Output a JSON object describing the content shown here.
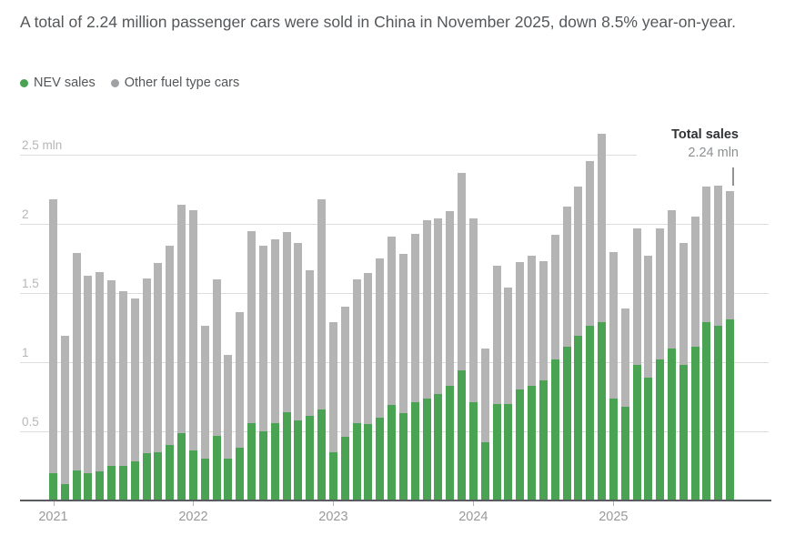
{
  "header": {
    "title": "A total of 2.24 million passenger cars were sold in China in November 2025, down 8.5% year-on-year."
  },
  "legend": {
    "items": [
      {
        "label": "NEV sales",
        "color": "#4aa352"
      },
      {
        "label": "Other fuel type cars",
        "color": "#9fa1a3"
      }
    ]
  },
  "annotation": {
    "label": "Total sales",
    "value": "2.24 mln"
  },
  "chart_data": {
    "type": "bar",
    "stacked": true,
    "unit": "mln vehicles",
    "ylim": [
      0,
      2.66
    ],
    "grid": true,
    "y_ticks": [
      {
        "value": 0.5,
        "label": "0.5"
      },
      {
        "value": 1.0,
        "label": "1"
      },
      {
        "value": 1.5,
        "label": "1.5"
      },
      {
        "value": 2.0,
        "label": "2"
      },
      {
        "value": 2.5,
        "label": "2.5 mln"
      }
    ],
    "x_ticks": [
      {
        "index": 0,
        "label": "2021"
      },
      {
        "index": 12,
        "label": "2022"
      },
      {
        "index": 24,
        "label": "2023"
      },
      {
        "index": 36,
        "label": "2024"
      },
      {
        "index": 48,
        "label": "2025"
      }
    ],
    "categories": [
      "Jan 2021",
      "Feb 2021",
      "Mar 2021",
      "Apr 2021",
      "May 2021",
      "Jun 2021",
      "Jul 2021",
      "Aug 2021",
      "Sep 2021",
      "Oct 2021",
      "Nov 2021",
      "Dec 2021",
      "Jan 2022",
      "Feb 2022",
      "Mar 2022",
      "Apr 2022",
      "May 2022",
      "Jun 2022",
      "Jul 2022",
      "Aug 2022",
      "Sep 2022",
      "Oct 2022",
      "Nov 2022",
      "Dec 2022",
      "Jan 2023",
      "Feb 2023",
      "Mar 2023",
      "Apr 2023",
      "May 2023",
      "Jun 2023",
      "Jul 2023",
      "Aug 2023",
      "Sep 2023",
      "Oct 2023",
      "Nov 2023",
      "Dec 2023",
      "Jan 2024",
      "Feb 2024",
      "Mar 2024",
      "Apr 2024",
      "May 2024",
      "Jun 2024",
      "Jul 2024",
      "Aug 2024",
      "Sep 2024",
      "Oct 2024",
      "Nov 2024",
      "Dec 2024",
      "Jan 2025",
      "Feb 2025",
      "Mar 2025",
      "Apr 2025",
      "May 2025",
      "Jun 2025",
      "Jul 2025",
      "Aug 2025",
      "Sep 2025",
      "Oct 2025",
      "Nov 2025"
    ],
    "series": [
      {
        "name": "NEV sales",
        "color": "#4aa352",
        "values": [
          0.2,
          0.12,
          0.22,
          0.2,
          0.21,
          0.25,
          0.25,
          0.28,
          0.34,
          0.35,
          0.4,
          0.49,
          0.36,
          0.3,
          0.47,
          0.3,
          0.38,
          0.56,
          0.5,
          0.56,
          0.64,
          0.58,
          0.61,
          0.66,
          0.35,
          0.46,
          0.56,
          0.55,
          0.6,
          0.69,
          0.63,
          0.71,
          0.74,
          0.77,
          0.83,
          0.94,
          0.71,
          0.42,
          0.7,
          0.7,
          0.8,
          0.83,
          0.87,
          1.02,
          1.11,
          1.19,
          1.26,
          1.29,
          0.74,
          0.68,
          0.98,
          0.89,
          1.02,
          1.1,
          0.98,
          1.11,
          1.29,
          1.26,
          1.31
        ]
      },
      {
        "name": "Other fuel type cars",
        "color": "#b4b4b4",
        "values": [
          1.98,
          1.07,
          1.57,
          1.43,
          1.44,
          1.34,
          1.26,
          1.18,
          1.26,
          1.37,
          1.44,
          1.65,
          1.74,
          0.96,
          1.13,
          0.75,
          0.98,
          1.39,
          1.34,
          1.33,
          1.3,
          1.28,
          1.05,
          1.52,
          0.94,
          0.94,
          1.04,
          1.09,
          1.15,
          1.22,
          1.15,
          1.22,
          1.29,
          1.27,
          1.26,
          1.43,
          1.33,
          0.68,
          1.0,
          0.84,
          0.92,
          0.94,
          0.86,
          0.9,
          1.01,
          1.08,
          1.19,
          1.36,
          1.06,
          0.71,
          0.99,
          0.88,
          0.95,
          1.0,
          0.88,
          0.94,
          0.98,
          1.01,
          0.93
        ]
      }
    ],
    "totals": [
      2.18,
      1.19,
      1.79,
      1.63,
      1.65,
      1.59,
      1.51,
      1.46,
      1.6,
      1.72,
      1.84,
      2.14,
      2.1,
      1.26,
      1.6,
      1.05,
      1.36,
      1.95,
      1.84,
      1.89,
      1.94,
      1.86,
      1.66,
      2.18,
      1.29,
      1.4,
      1.6,
      1.64,
      1.75,
      1.91,
      1.78,
      1.93,
      2.03,
      2.04,
      2.09,
      2.37,
      2.04,
      1.1,
      1.7,
      1.54,
      1.72,
      1.77,
      1.73,
      1.92,
      2.12,
      2.27,
      2.45,
      2.65,
      1.8,
      1.39,
      1.97,
      1.77,
      1.97,
      2.1,
      1.86,
      2.05,
      2.27,
      2.27,
      2.24
    ]
  }
}
